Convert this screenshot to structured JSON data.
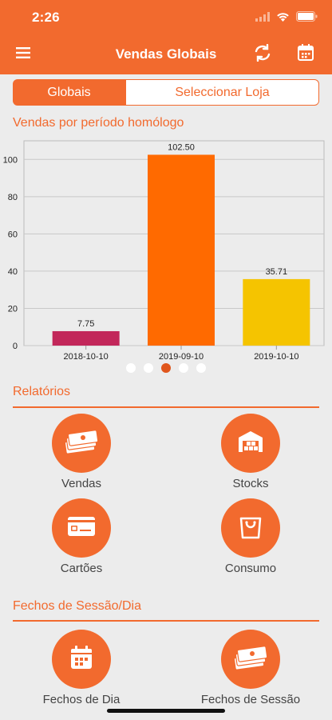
{
  "status": {
    "time": "2:26"
  },
  "nav": {
    "title": "Vendas Globais",
    "menu_icon": "hamburger-icon",
    "refresh_icon": "refresh-icon",
    "calendar_icon": "calendar-icon"
  },
  "segment": {
    "active": "Globais",
    "inactive": "Seleccionar Loja"
  },
  "chart_section_title": "Vendas por período homólogo",
  "chart_data": {
    "type": "bar",
    "categories": [
      "2018-10-10",
      "2019-09-10",
      "2019-10-10"
    ],
    "values": [
      7.75,
      102.5,
      35.71
    ],
    "value_labels": [
      "7.75",
      "102.50",
      "35.71"
    ],
    "colors": [
      "#c2275a",
      "#ff6a00",
      "#f5c400"
    ],
    "ylim": [
      0,
      110
    ],
    "yticks": [
      0,
      20,
      40,
      60,
      80,
      100
    ],
    "grid": true
  },
  "pager": {
    "count": 5,
    "active_index": 2
  },
  "reports": {
    "title": "Relatórios",
    "items": [
      {
        "label": "Vendas",
        "icon": "money-icon"
      },
      {
        "label": "Stocks",
        "icon": "warehouse-icon"
      },
      {
        "label": "Cartões",
        "icon": "card-icon"
      },
      {
        "label": "Consumo",
        "icon": "shopping-bag-icon"
      }
    ]
  },
  "closures": {
    "title": "Fechos de Sessão/Dia",
    "items": [
      {
        "label": "Fechos de Dia",
        "icon": "calendar-icon"
      },
      {
        "label": "Fechos de Sessão",
        "icon": "money-icon"
      }
    ]
  }
}
